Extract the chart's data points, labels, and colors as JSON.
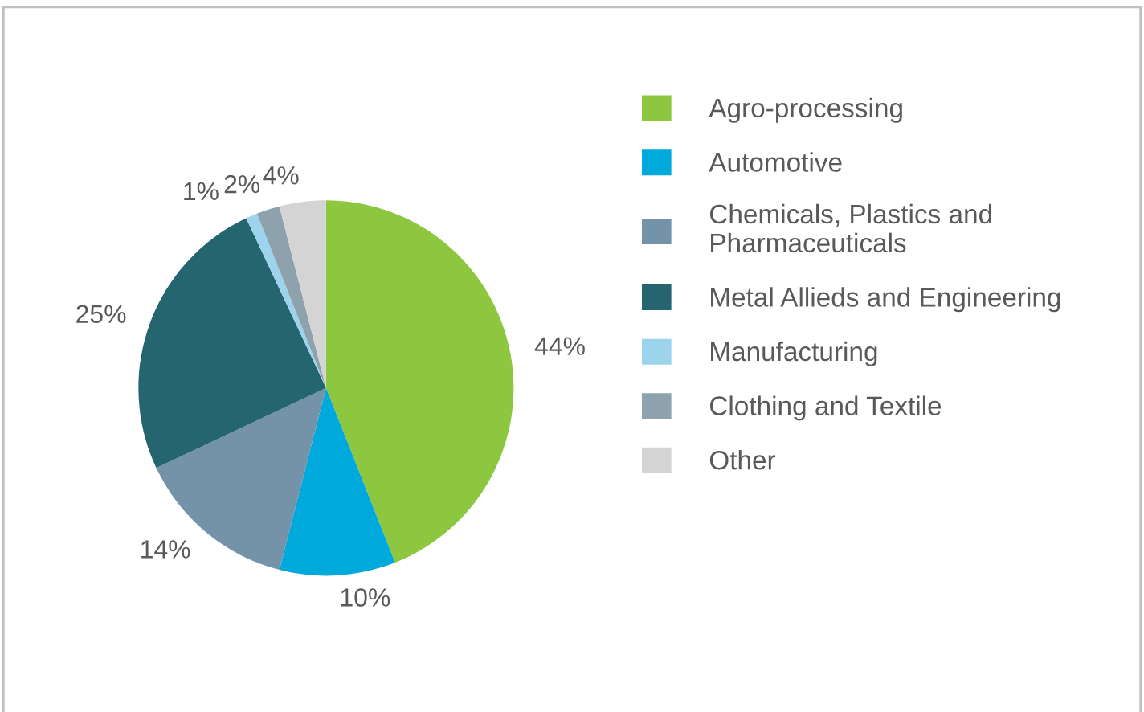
{
  "chart_data": {
    "type": "pie",
    "categories": [
      "Agro-processing",
      "Automotive",
      "Chemicals, Plastics and\nPharmaceuticals",
      "Metal Allieds and Engineering",
      "Manufacturing",
      "Clothing and Textile",
      "Other"
    ],
    "values": [
      44,
      10,
      14,
      25,
      1,
      2,
      4
    ],
    "colors": [
      "#8dc63f",
      "#00a9dc",
      "#7593a8",
      "#256570",
      "#9dd3ec",
      "#8ea2ad",
      "#d4d4d4"
    ],
    "value_labels": [
      "44%",
      "10%",
      "14%",
      "25%",
      "1%",
      "2%",
      "4%"
    ],
    "legend": "right"
  }
}
